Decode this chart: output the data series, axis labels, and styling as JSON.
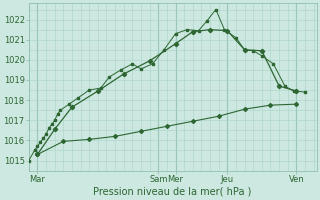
{
  "xlabel": "Pression niveau de la mer( hPa )",
  "background_color": "#cce8e0",
  "grid_minor_color": "#aad4c8",
  "grid_major_color": "#88b8aa",
  "line_color": "#2d6632",
  "ylim": [
    1014.5,
    1022.8
  ],
  "xlim": [
    0,
    100
  ],
  "xtick_positions": [
    3,
    27,
    45,
    51,
    69,
    93
  ],
  "xtick_labels": [
    "Mar",
    "",
    "Sam",
    "Mer",
    "Jeu",
    "Ven"
  ],
  "day_lines": [
    3,
    45,
    51,
    69,
    93
  ],
  "ytick_positions": [
    1015,
    1016,
    1017,
    1018,
    1019,
    1020,
    1021,
    1022
  ],
  "series1_x": [
    0,
    2,
    3,
    4,
    5,
    6,
    7,
    8,
    9,
    10,
    11,
    14,
    17,
    21,
    25,
    28,
    32,
    36,
    39,
    43,
    47,
    51,
    55,
    59,
    62,
    65,
    68,
    72,
    75,
    78,
    81,
    85,
    89,
    92,
    96
  ],
  "series1_y": [
    1015.0,
    1015.5,
    1015.7,
    1015.9,
    1016.1,
    1016.3,
    1016.6,
    1016.8,
    1017.0,
    1017.3,
    1017.5,
    1017.8,
    1018.1,
    1018.5,
    1018.6,
    1019.15,
    1019.5,
    1019.8,
    1019.55,
    1019.8,
    1020.5,
    1021.3,
    1021.5,
    1021.45,
    1021.95,
    1022.5,
    1021.5,
    1021.1,
    1020.5,
    1020.45,
    1020.2,
    1019.8,
    1018.7,
    1018.45,
    1018.4
  ],
  "series2_x": [
    3,
    9,
    15,
    24,
    33,
    42,
    51,
    57,
    63,
    69,
    75,
    81,
    87,
    93
  ],
  "series2_y": [
    1015.3,
    1016.55,
    1017.65,
    1018.45,
    1019.3,
    1019.95,
    1020.8,
    1021.4,
    1021.5,
    1021.45,
    1020.5,
    1020.45,
    1018.7,
    1018.45
  ],
  "series3_x": [
    3,
    12,
    21,
    30,
    39,
    48,
    57,
    66,
    75,
    84,
    93
  ],
  "series3_y": [
    1015.3,
    1015.95,
    1016.05,
    1016.2,
    1016.45,
    1016.7,
    1016.95,
    1017.2,
    1017.55,
    1017.75,
    1017.8
  ]
}
